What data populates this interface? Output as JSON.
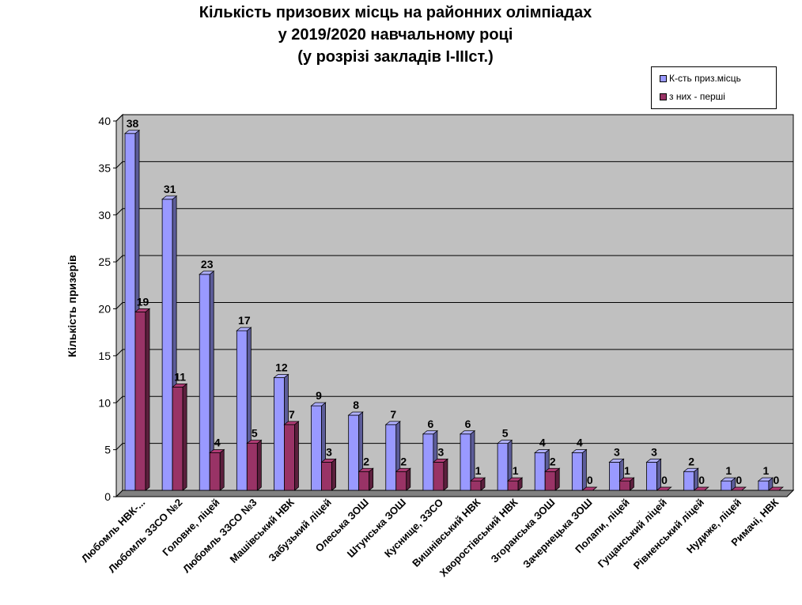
{
  "chart_data": {
    "type": "bar",
    "title": [
      "Кількість призових місць на районних олімпіадах",
      "у 2019/2020  навчальному році",
      "(у розрізі закладів І-ІІІст.)"
    ],
    "ylabel": "Кількість призерів",
    "xlabel": "",
    "ylim": [
      0,
      40
    ],
    "yticks": [
      0,
      5,
      10,
      15,
      20,
      25,
      30,
      35,
      40
    ],
    "grid": true,
    "legend_position": "top-right",
    "categories": [
      "Любомль  НВК-...",
      "Любомль  ЗЗСО №2",
      "Головне, ліцей",
      "Любомль  ЗЗСО №3",
      "Машівський НВК",
      "Забузький ліцей",
      "Олеська ЗОШ",
      "Штунська ЗОШ",
      "Куснище, ЗЗСО",
      "Вишнівський  НВК",
      "Хворостівський НВК",
      "Згоранська ЗОШ",
      "Зачернецька ЗОШ",
      "Полапи, ліцей",
      "Гущанський ліцей",
      "Рівненський ліцей",
      "Нудиже,  ліцей",
      "Римачі,  НВК"
    ],
    "series": [
      {
        "name": "К-сть приз.місць",
        "color": "#9999ff",
        "values": [
          38,
          31,
          23,
          17,
          12,
          9,
          8,
          7,
          6,
          6,
          5,
          4,
          4,
          3,
          3,
          2,
          1,
          1
        ]
      },
      {
        "name": "з них - перші",
        "color": "#993366",
        "values": [
          19,
          11,
          4,
          5,
          7,
          3,
          2,
          2,
          3,
          1,
          1,
          2,
          0,
          1,
          0,
          0,
          0,
          0
        ]
      }
    ]
  }
}
